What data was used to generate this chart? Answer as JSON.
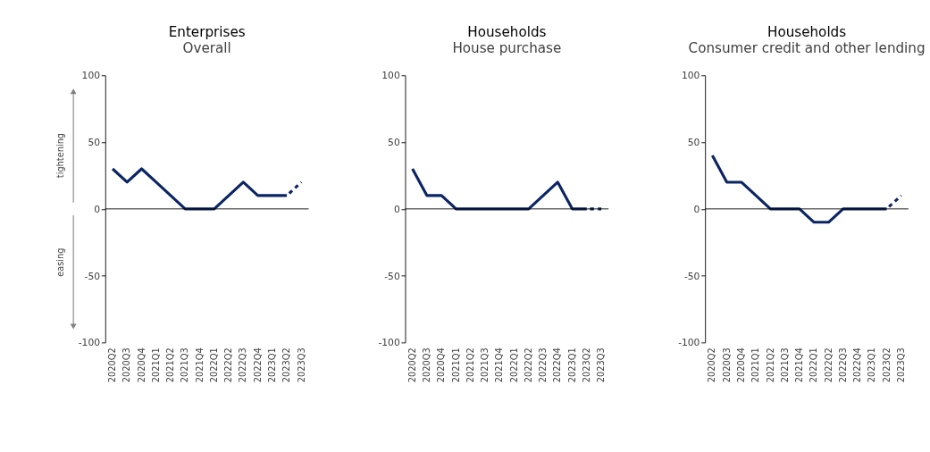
{
  "chart_data": [
    {
      "type": "line",
      "title": "Enterprises",
      "subtitle": "Overall",
      "categories": [
        "2020Q2",
        "2020Q3",
        "2020Q4",
        "2021Q1",
        "2021Q2",
        "2021Q3",
        "2021Q4",
        "2022Q1",
        "2022Q2",
        "2022Q3",
        "2022Q4",
        "2023Q1",
        "2023Q2",
        "2023Q3"
      ],
      "ylim": [
        -100,
        100
      ],
      "yticks": [
        -100,
        -50,
        0,
        50,
        100
      ],
      "annotations": [
        "tightening",
        "easing"
      ],
      "series": [
        {
          "color": "#0b2463",
          "line_style": "solid",
          "values": [
            30,
            20,
            30,
            20,
            10,
            0,
            0,
            0,
            10,
            20,
            10,
            10,
            10,
            null
          ]
        },
        {
          "color": "#0b2463",
          "line_style": "dashed",
          "values": [
            null,
            null,
            null,
            null,
            null,
            null,
            null,
            null,
            null,
            null,
            null,
            null,
            10,
            20
          ]
        }
      ]
    },
    {
      "type": "line",
      "title": "Households",
      "subtitle": "House purchase",
      "categories": [
        "2020Q2",
        "2020Q3",
        "2020Q4",
        "2021Q1",
        "2021Q2",
        "2021Q3",
        "2021Q4",
        "2022Q1",
        "2022Q2",
        "2022Q3",
        "2022Q4",
        "2023Q1",
        "2023Q2",
        "2023Q3"
      ],
      "ylim": [
        -100,
        100
      ],
      "yticks": [
        -100,
        -50,
        0,
        50,
        100
      ],
      "series": [
        {
          "color": "#0b2463",
          "line_style": "solid",
          "values": [
            30,
            10,
            10,
            0,
            0,
            0,
            0,
            0,
            0,
            10,
            20,
            0,
            0,
            null
          ]
        },
        {
          "color": "#0b2463",
          "line_style": "dashed",
          "values": [
            null,
            null,
            null,
            null,
            null,
            null,
            null,
            null,
            null,
            null,
            null,
            null,
            0,
            0
          ]
        }
      ]
    },
    {
      "type": "line",
      "title": "Households",
      "subtitle": "Consumer credit and other lending",
      "categories": [
        "2020Q2",
        "2020Q3",
        "2020Q4",
        "2021Q1",
        "2021Q2",
        "2021Q3",
        "2021Q4",
        "2022Q1",
        "2022Q2",
        "2022Q3",
        "2022Q4",
        "2023Q1",
        "2023Q2",
        "2023Q3"
      ],
      "ylim": [
        -100,
        100
      ],
      "yticks": [
        -100,
        -50,
        0,
        50,
        100
      ],
      "series": [
        {
          "color": "#0b2463",
          "line_style": "solid",
          "values": [
            40,
            20,
            20,
            10,
            0,
            0,
            0,
            -10,
            -10,
            0,
            0,
            0,
            0,
            null
          ]
        },
        {
          "color": "#0b2463",
          "line_style": "dashed",
          "values": [
            null,
            null,
            null,
            null,
            null,
            null,
            null,
            null,
            null,
            null,
            null,
            null,
            0,
            10
          ]
        }
      ]
    }
  ]
}
